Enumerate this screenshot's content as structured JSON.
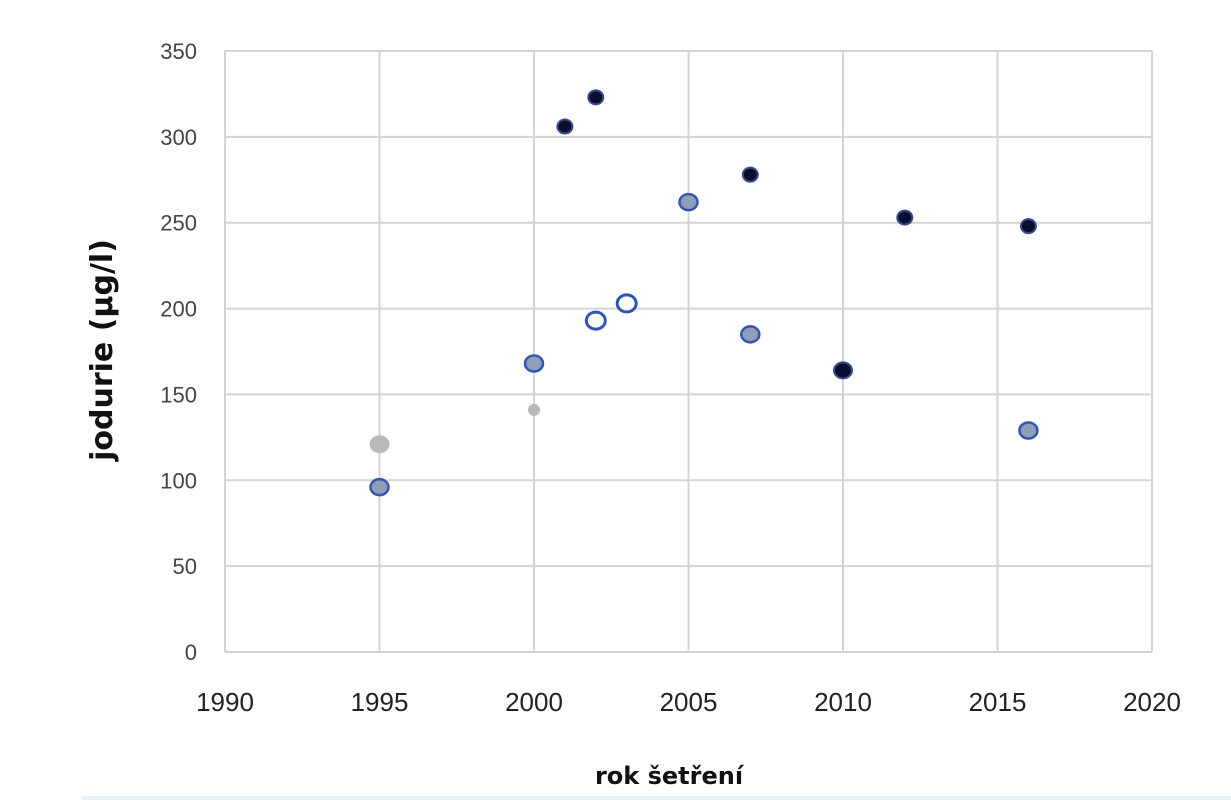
{
  "chart_data": {
    "type": "scatter",
    "title": "",
    "xlabel": "rok šetření",
    "ylabel": "jodurie (µg/l)",
    "xlim": [
      1990,
      2020
    ],
    "ylim": [
      0,
      350
    ],
    "x_ticks": [
      1990,
      1995,
      2000,
      2005,
      2010,
      2015,
      2020
    ],
    "y_ticks": [
      0,
      50,
      100,
      150,
      200,
      250,
      300,
      350
    ],
    "grid": true,
    "legend": "none",
    "series": [
      {
        "style": "black-filled",
        "fill": "#0b0f2e",
        "stroke": "#3b4a8a",
        "points": [
          [
            2001,
            306
          ],
          [
            2002,
            323
          ],
          [
            2007,
            278
          ],
          [
            2010,
            164
          ],
          [
            2012,
            253
          ],
          [
            2016,
            248
          ]
        ]
      },
      {
        "style": "blue-grey-filled",
        "fill": "#8e9db8",
        "stroke": "#3556b0",
        "points": [
          [
            1995,
            96
          ],
          [
            2000,
            168
          ],
          [
            2005,
            262
          ],
          [
            2007,
            185
          ],
          [
            2016,
            129
          ]
        ]
      },
      {
        "style": "open-circle",
        "fill": "#ffffff",
        "stroke": "#2f55b8",
        "points": [
          [
            2002,
            193
          ],
          [
            2003,
            203
          ]
        ]
      },
      {
        "style": "light-grey",
        "fill": "#b9b9b9",
        "stroke": "#b9b9b9",
        "points": [
          [
            1995,
            121
          ],
          [
            2000,
            141
          ]
        ]
      }
    ]
  }
}
